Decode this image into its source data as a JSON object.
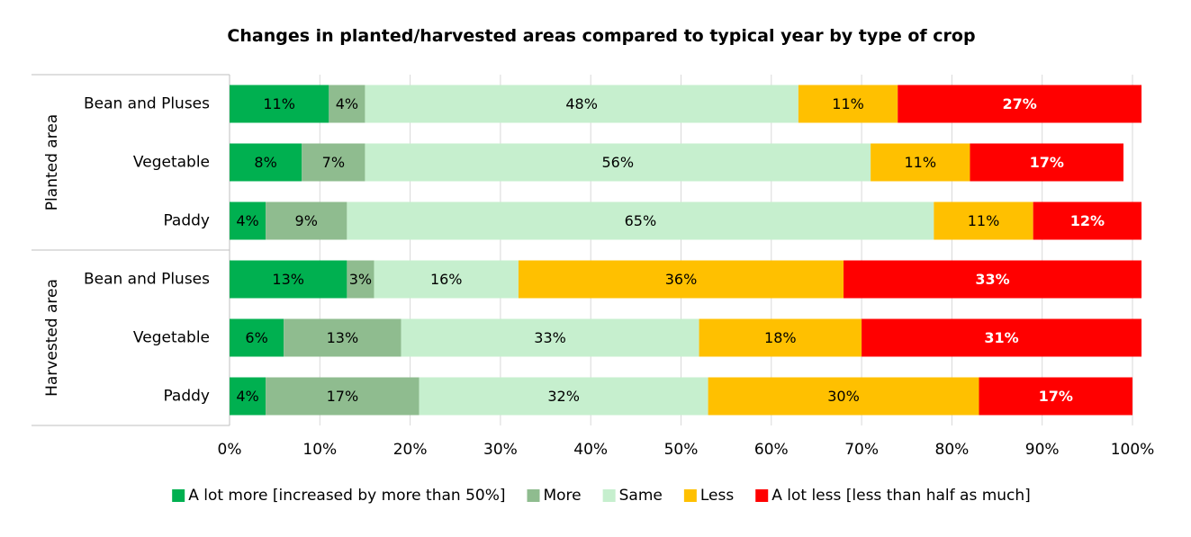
{
  "chart_data": {
    "type": "bar",
    "orientation": "horizontal",
    "stacked": true,
    "percent": true,
    "title": "Changes in planted/harvested areas compared to typical year by type of crop",
    "groups": [
      {
        "label": "Planted area",
        "categories": [
          "Bean and Pluses",
          "Vegetable",
          "Paddy"
        ]
      },
      {
        "label": "Harvested area",
        "categories": [
          "Bean and Pluses",
          "Vegetable",
          "Paddy"
        ]
      }
    ],
    "series": [
      {
        "name": "A lot more [increased by more than 50%]",
        "color": "#00b050",
        "values": [
          11,
          8,
          4,
          13,
          6,
          4
        ]
      },
      {
        "name": "More",
        "color": "#8fbc8f",
        "values": [
          4,
          7,
          9,
          3,
          13,
          17
        ]
      },
      {
        "name": "Same",
        "color": "#c6efce",
        "values": [
          48,
          56,
          65,
          16,
          33,
          32
        ]
      },
      {
        "name": "Less",
        "color": "#ffc000",
        "values": [
          11,
          11,
          11,
          36,
          18,
          30
        ]
      },
      {
        "name": "A lot less [less than half as much]",
        "color": "#ff0000",
        "values": [
          27,
          17,
          12,
          33,
          31,
          17
        ]
      }
    ],
    "xlim": [
      0,
      100
    ],
    "x_ticks": [
      "0%",
      "10%",
      "20%",
      "30%",
      "40%",
      "50%",
      "60%",
      "70%",
      "80%",
      "90%",
      "100%"
    ],
    "grid": true,
    "legend": "bottom"
  }
}
